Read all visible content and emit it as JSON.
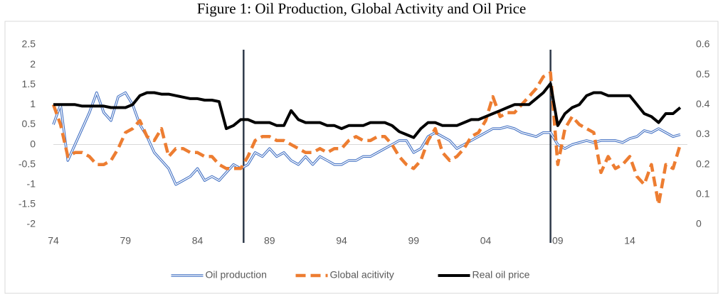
{
  "chart_data": {
    "type": "line",
    "title": "Figure 1: Oil Production, Global Activity and Oil Price",
    "x": [
      1974,
      1974.5,
      1975,
      1975.5,
      1976,
      1976.5,
      1977,
      1977.5,
      1978,
      1978.5,
      1979,
      1979.5,
      1980,
      1980.5,
      1981,
      1981.5,
      1982,
      1982.5,
      1983,
      1983.5,
      1984,
      1984.5,
      1985,
      1985.5,
      1986,
      1986.5,
      1987,
      1987.5,
      1988,
      1988.5,
      1989,
      1989.5,
      1990,
      1990.5,
      1991,
      1991.5,
      1992,
      1992.5,
      1993,
      1993.5,
      1994,
      1994.5,
      1995,
      1995.5,
      1996,
      1996.5,
      1997,
      1997.5,
      1998,
      1998.5,
      1999,
      1999.5,
      2000,
      2000.5,
      2001,
      2001.5,
      2002,
      2002.5,
      2003,
      2003.5,
      2004,
      2004.5,
      2005,
      2005.5,
      2006,
      2006.5,
      2007,
      2007.5,
      2008,
      2008.5,
      2009,
      2009.5,
      2010,
      2010.5,
      2011,
      2011.5,
      2012,
      2012.5,
      2013,
      2013.5,
      2014,
      2014.5,
      2015,
      2015.5,
      2016,
      2016.5,
      2017,
      2017.5
    ],
    "series": [
      {
        "name": "Oil production",
        "color": "#4472c4",
        "style": "double",
        "values": [
          0.5,
          1.0,
          -0.4,
          0,
          0.4,
          0.8,
          1.3,
          0.8,
          0.6,
          1.2,
          1.3,
          1.0,
          0.5,
          0.2,
          -0.2,
          -0.4,
          -0.6,
          -1.0,
          -0.9,
          -0.8,
          -0.6,
          -0.9,
          -0.8,
          -0.9,
          -0.7,
          -0.5,
          -0.6,
          -0.5,
          -0.2,
          -0.3,
          -0.1,
          -0.3,
          -0.2,
          -0.4,
          -0.5,
          -0.3,
          -0.5,
          -0.3,
          -0.4,
          -0.5,
          -0.5,
          -0.4,
          -0.4,
          -0.3,
          -0.3,
          -0.2,
          -0.1,
          0,
          0.1,
          0.1,
          -0.2,
          -0.1,
          0.2,
          0.3,
          0.2,
          0.1,
          -0.1,
          0,
          0.1,
          0.2,
          0.3,
          0.4,
          0.4,
          0.45,
          0.4,
          0.3,
          0.25,
          0.2,
          0.3,
          0.3,
          0,
          -0.1,
          0,
          0.05,
          0.1,
          0.05,
          0.1,
          0.1,
          0.1,
          0.05,
          0.15,
          0.2,
          0.35,
          0.3,
          0.4,
          0.3,
          0.2,
          0.25
        ]
      },
      {
        "name": "Global acitivity",
        "color": "#ed7d31",
        "style": "dashed",
        "values": [
          1.0,
          0.5,
          -0.3,
          -0.2,
          -0.2,
          -0.3,
          -0.5,
          -0.5,
          -0.4,
          -0.1,
          0.3,
          0.4,
          0.6,
          0.2,
          0.1,
          0.4,
          -0.3,
          -0.1,
          -0.1,
          -0.2,
          -0.2,
          -0.3,
          -0.3,
          -0.5,
          -0.6,
          -0.6,
          -0.6,
          -0.3,
          0.1,
          0.2,
          0.2,
          0.1,
          0.1,
          0,
          -0.1,
          -0.2,
          -0.2,
          -0.1,
          -0.2,
          -0.1,
          -0.1,
          0.1,
          0.2,
          0.1,
          0.1,
          0.2,
          0.2,
          0,
          -0.3,
          -0.5,
          -0.6,
          -0.4,
          0.1,
          0.4,
          -0.2,
          -0.4,
          -0.3,
          -0.1,
          0.2,
          0.3,
          0.6,
          1.2,
          0.7,
          0.8,
          0.8,
          1.0,
          1.2,
          1.4,
          1.7,
          1.8,
          -0.5,
          0.4,
          0.7,
          0.5,
          0.4,
          0.3,
          -0.7,
          -0.3,
          -0.6,
          -0.5,
          -0.3,
          -0.8,
          -1.0,
          -0.5,
          -1.5,
          -0.5,
          -0.6,
          0.0
        ]
      },
      {
        "name": "Real oil price",
        "color": "#000000",
        "style": "solid",
        "axis": "y2",
        "values": [
          0.4,
          0.4,
          0.4,
          0.4,
          0.395,
          0.395,
          0.395,
          0.395,
          0.39,
          0.39,
          0.39,
          0.4,
          0.43,
          0.44,
          0.44,
          0.435,
          0.435,
          0.43,
          0.425,
          0.42,
          0.42,
          0.415,
          0.415,
          0.41,
          0.32,
          0.33,
          0.35,
          0.35,
          0.34,
          0.34,
          0.34,
          0.33,
          0.33,
          0.38,
          0.35,
          0.34,
          0.34,
          0.34,
          0.33,
          0.33,
          0.32,
          0.33,
          0.33,
          0.33,
          0.34,
          0.34,
          0.34,
          0.33,
          0.31,
          0.3,
          0.29,
          0.32,
          0.34,
          0.34,
          0.33,
          0.33,
          0.33,
          0.34,
          0.35,
          0.35,
          0.36,
          0.37,
          0.38,
          0.39,
          0.4,
          0.4,
          0.4,
          0.42,
          0.44,
          0.47,
          0.33,
          0.37,
          0.39,
          0.4,
          0.43,
          0.44,
          0.44,
          0.43,
          0.43,
          0.43,
          0.43,
          0.4,
          0.37,
          0.36,
          0.34,
          0.37,
          0.37,
          0.39
        ]
      }
    ],
    "xlim": [
      1974,
      2018
    ],
    "xticks": [
      {
        "value": 1974,
        "label": "74"
      },
      {
        "value": 1979,
        "label": "79"
      },
      {
        "value": 1984,
        "label": "84"
      },
      {
        "value": 1989,
        "label": "89"
      },
      {
        "value": 1994,
        "label": "94"
      },
      {
        "value": 1999,
        "label": "99"
      },
      {
        "value": 2004,
        "label": "04"
      },
      {
        "value": 2009,
        "label": "09"
      },
      {
        "value": 2014,
        "label": "14"
      }
    ],
    "ylim": [
      -2,
      2.5
    ],
    "yticks": [
      -2,
      -1.5,
      -1,
      -0.5,
      0,
      0.5,
      1,
      1.5,
      2,
      2.5
    ],
    "y2lim": [
      0,
      0.6
    ],
    "y2ticks": [
      0,
      0.1,
      0.2,
      0.3,
      0.4,
      0.5,
      0.6
    ],
    "vlines": [
      1987.2,
      2008.5
    ],
    "legend": "bottom"
  }
}
